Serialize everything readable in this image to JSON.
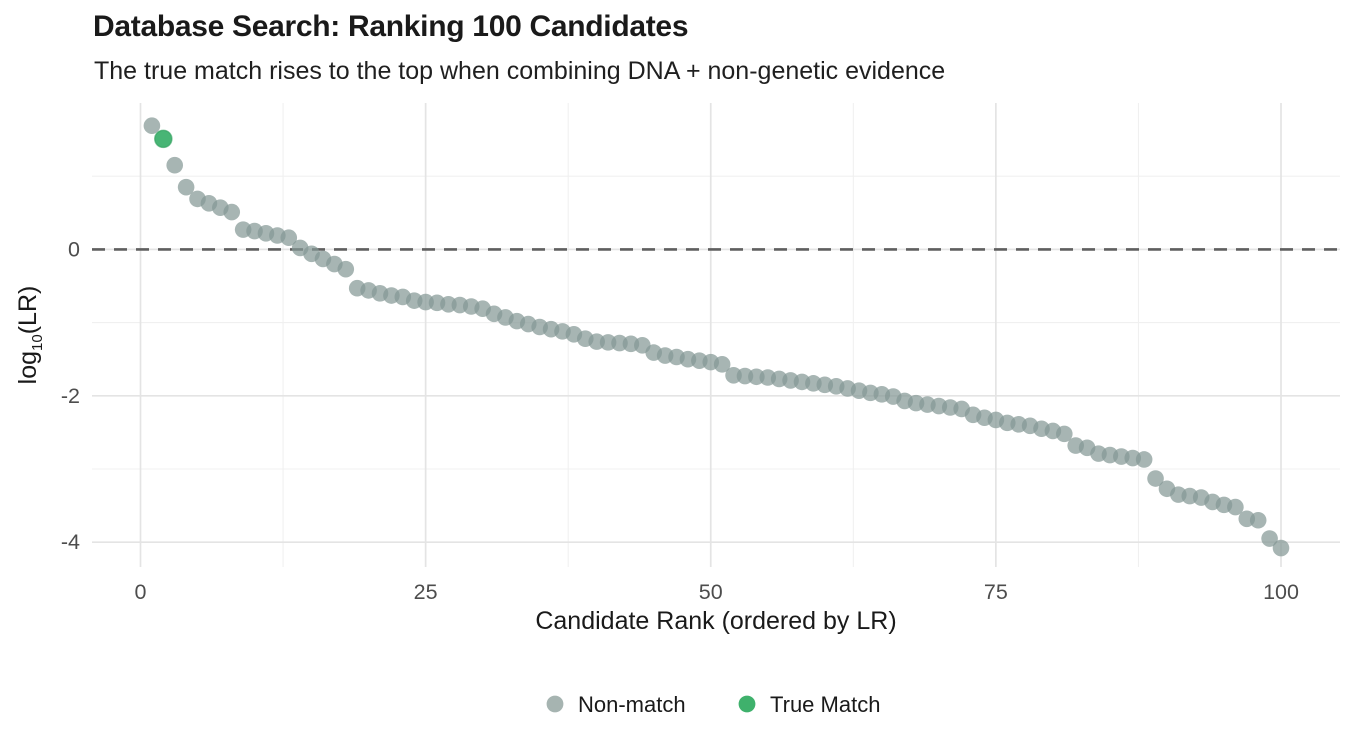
{
  "chart_data": {
    "type": "scatter",
    "title": "Database Search: Ranking 100 Candidates",
    "subtitle": "The true match rises to the top when combining DNA + non-genetic evidence",
    "xlabel": "Candidate Rank (ordered by LR)",
    "ylabel": "log10(LR)",
    "ylabel_parts": {
      "base": "log",
      "sub": "10",
      "rest": "(LR)"
    },
    "x_ticks": [
      "0",
      "25",
      "50",
      "75",
      "100"
    ],
    "x_tick_values": [
      0,
      25,
      50,
      75,
      100
    ],
    "y_ticks": [
      "0",
      "-2",
      "-4"
    ],
    "y_tick_values": [
      0,
      -2,
      -4
    ],
    "x_minor_gridlines": [
      12.5,
      37.5,
      62.5,
      87.5
    ],
    "y_minor_gridlines": [
      1,
      -1,
      -3
    ],
    "xlim": [
      -4.2,
      105.2
    ],
    "ylim": [
      -4.34,
      2.0
    ],
    "grid": true,
    "legend_position": "bottom",
    "reference_line": {
      "y": 0,
      "style": "dashed",
      "color": "#5f5f5f"
    },
    "true_match_rank": 2,
    "log10_lr_by_rank": [
      1.69,
      1.51,
      1.15,
      0.85,
      0.69,
      0.63,
      0.57,
      0.51,
      0.27,
      0.25,
      0.22,
      0.19,
      0.16,
      0.02,
      -0.06,
      -0.13,
      -0.2,
      -0.27,
      -0.53,
      -0.56,
      -0.6,
      -0.63,
      -0.65,
      -0.7,
      -0.72,
      -0.73,
      -0.75,
      -0.76,
      -0.78,
      -0.81,
      -0.88,
      -0.93,
      -0.98,
      -1.02,
      -1.06,
      -1.09,
      -1.12,
      -1.16,
      -1.22,
      -1.26,
      -1.27,
      -1.28,
      -1.29,
      -1.31,
      -1.41,
      -1.45,
      -1.47,
      -1.5,
      -1.52,
      -1.54,
      -1.57,
      -1.72,
      -1.73,
      -1.74,
      -1.75,
      -1.77,
      -1.79,
      -1.81,
      -1.83,
      -1.85,
      -1.87,
      -1.9,
      -1.93,
      -1.96,
      -1.98,
      -2.01,
      -2.07,
      -2.1,
      -2.12,
      -2.14,
      -2.16,
      -2.18,
      -2.26,
      -2.3,
      -2.33,
      -2.37,
      -2.39,
      -2.41,
      -2.45,
      -2.48,
      -2.52,
      -2.68,
      -2.71,
      -2.79,
      -2.81,
      -2.83,
      -2.85,
      -2.87,
      -3.13,
      -3.27,
      -3.35,
      -3.37,
      -3.39,
      -3.45,
      -3.49,
      -3.52,
      -3.68,
      -3.7,
      -3.95,
      -4.08
    ],
    "legend": {
      "items": [
        {
          "label": "Non-match",
          "color": "#a6b4b1"
        },
        {
          "label": "True Match",
          "color": "#3fb16c"
        }
      ]
    }
  },
  "colors": {
    "background": "#ffffff",
    "grid_major": "#e4e4e4",
    "grid_minor": "#f0f0f0",
    "point_nonmatch_fill": "rgba(133,152,149,0.72)",
    "point_truematch_fill": "rgba(62,177,110,0.95)",
    "point_truematch_stroke": "rgba(47,158,91,0.6)",
    "reference_line": "#5f5f5f",
    "tick_label": "#4d4d4d",
    "text": "#1a1a1a"
  }
}
